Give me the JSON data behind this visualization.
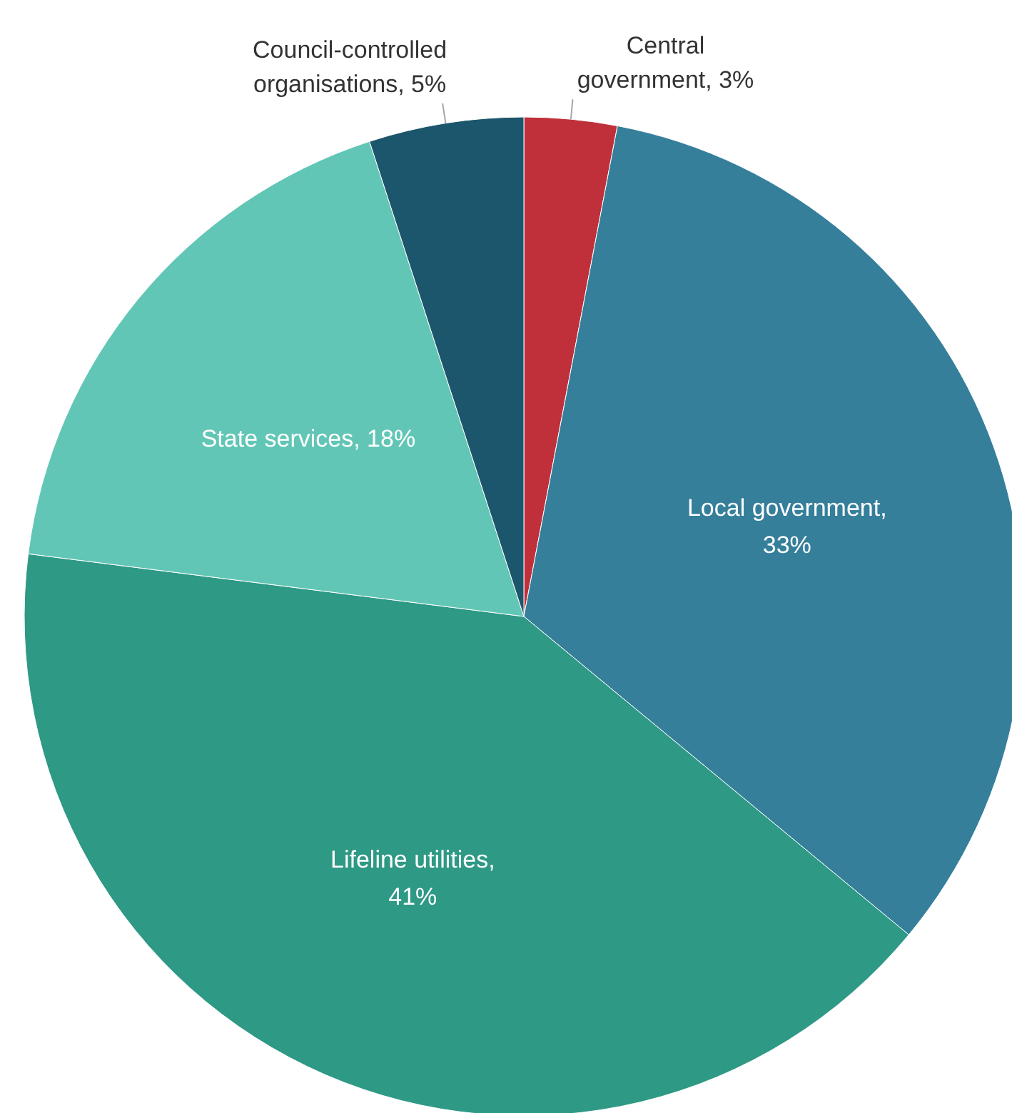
{
  "chart_data": {
    "type": "pie",
    "categories": [
      "Central government, 3%",
      "Local government, 33%",
      "Lifeline utilities, 41%",
      "State services, 18%",
      "Council-controlled organisations, 5%"
    ],
    "values": [
      3,
      33,
      41,
      18,
      5
    ],
    "colors": [
      "#c0303a",
      "#357f9b",
      "#2e9985",
      "#62c6b6",
      "#1c566c"
    ]
  }
}
